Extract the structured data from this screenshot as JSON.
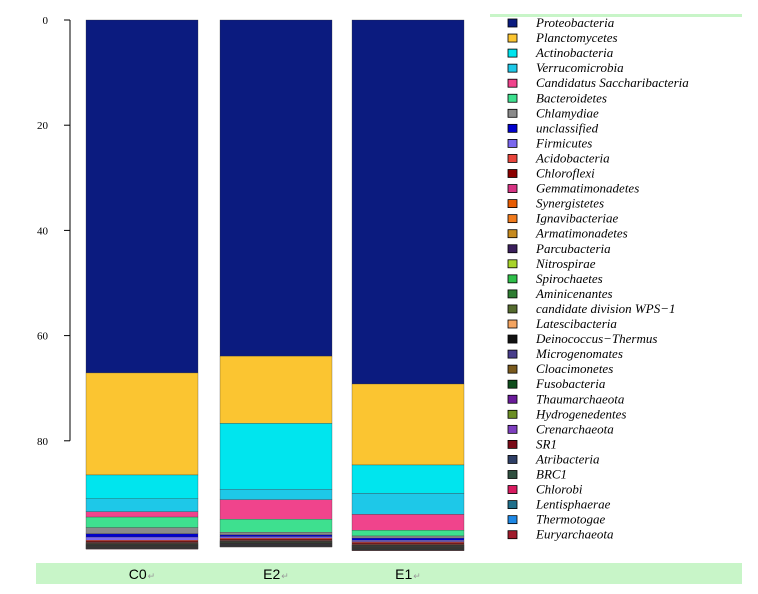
{
  "chart_data": {
    "type": "bar",
    "stacked": true,
    "categories": [
      "C0",
      "E2",
      "E1"
    ],
    "ylim": [
      0,
      100
    ],
    "yticks": [
      0,
      20,
      40,
      60,
      80
    ],
    "y_inverted": true,
    "legend_position": "right",
    "series": [
      {
        "name": "Proteobacteria",
        "color": "#0b1b7f",
        "values": [
          67.1,
          63.9,
          69.2
        ]
      },
      {
        "name": "Planctomycetes",
        "color": "#fbc531",
        "values": [
          19.4,
          12.8,
          15.4
        ]
      },
      {
        "name": "Actinobacteria",
        "color": "#00e5ee",
        "values": [
          4.5,
          12.5,
          5.4
        ]
      },
      {
        "name": "Verrucomicrobia",
        "color": "#1ec8e8",
        "values": [
          2.5,
          2.0,
          4.0
        ]
      },
      {
        "name": "Candidatus Saccharibacteria",
        "color": "#f0448c",
        "values": [
          1.0,
          3.7,
          3.0
        ]
      },
      {
        "name": "Bacteroidetes",
        "color": "#3ee08f",
        "values": [
          2.0,
          2.5,
          1.1
        ]
      },
      {
        "name": "Chlamydiae",
        "color": "#8a8a8a",
        "values": [
          1.2,
          0.5,
          0.4
        ]
      },
      {
        "name": "unclassified",
        "color": "#0000cd",
        "values": [
          0.6,
          0.3,
          0.4
        ]
      },
      {
        "name": "Firmicutes",
        "color": "#7b68ee",
        "values": [
          0.6,
          0.3,
          0.3
        ]
      },
      {
        "name": "Acidobacteria",
        "color": "#e8453c",
        "values": [
          0.2,
          0.2,
          0.2
        ]
      },
      {
        "name": "Chloroflexi",
        "color": "#8b0000",
        "values": [
          0.2,
          0.2,
          0.2
        ]
      },
      {
        "name": "Gemmatimonadetes",
        "color": "#d63384",
        "values": [
          0.1,
          0.1,
          0.1
        ]
      },
      {
        "name": "Synergistetes",
        "color": "#e85d04",
        "values": [
          0.1,
          0.1,
          0.1
        ]
      },
      {
        "name": "Ignavibacteriae",
        "color": "#f07b1d",
        "values": [
          0.05,
          0.05,
          0.05
        ]
      },
      {
        "name": "Armatimonadetes",
        "color": "#c68a1e",
        "values": [
          0.05,
          0.05,
          0.05
        ]
      },
      {
        "name": "Parcubacteria",
        "color": "#3b1f5c",
        "values": [
          0.05,
          0.05,
          0.05
        ]
      },
      {
        "name": "Nitrospirae",
        "color": "#a8d42a",
        "values": [
          0.05,
          0.05,
          0.05
        ]
      },
      {
        "name": "Spirochaetes",
        "color": "#2fbf4a",
        "values": [
          0.05,
          0.05,
          0.05
        ]
      },
      {
        "name": "Aminicenantes",
        "color": "#2e7d32",
        "values": [
          0.05,
          0.05,
          0.05
        ]
      },
      {
        "name": "candidate division WPS-1",
        "color": "#556b2f",
        "values": [
          0.05,
          0.05,
          0.05
        ]
      },
      {
        "name": "Latescibacteria",
        "color": "#f4a460",
        "values": [
          0.05,
          0.05,
          0.05
        ]
      },
      {
        "name": "Deinococcus-Thermus",
        "color": "#111111",
        "values": [
          0.05,
          0.05,
          0.05
        ]
      },
      {
        "name": "Microgenomates",
        "color": "#483d8b",
        "values": [
          0.05,
          0.05,
          0.05
        ]
      },
      {
        "name": "Cloacimonetes",
        "color": "#7a5a1e",
        "values": [
          0.05,
          0.05,
          0.05
        ]
      },
      {
        "name": "Fusobacteria",
        "color": "#0f4d1c",
        "values": [
          0.05,
          0.05,
          0.05
        ]
      },
      {
        "name": "Thaumarchaeota",
        "color": "#6a1b9a",
        "values": [
          0.05,
          0.05,
          0.05
        ]
      },
      {
        "name": "Hydrogenedentes",
        "color": "#6b8e23",
        "values": [
          0.05,
          0.05,
          0.05
        ]
      },
      {
        "name": "Crenarchaeota",
        "color": "#7e3fbf",
        "values": [
          0.05,
          0.05,
          0.05
        ]
      },
      {
        "name": "SR1",
        "color": "#7a0a16",
        "values": [
          0.05,
          0.05,
          0.05
        ]
      },
      {
        "name": "Atribacteria",
        "color": "#2f3f66",
        "values": [
          0.05,
          0.05,
          0.05
        ]
      },
      {
        "name": "BRC1",
        "color": "#2f4f3f",
        "values": [
          0.05,
          0.05,
          0.05
        ]
      },
      {
        "name": "Chlorobi",
        "color": "#d81b60",
        "values": [
          0.05,
          0.05,
          0.05
        ]
      },
      {
        "name": "Lentisphaerae",
        "color": "#1f6f8b",
        "values": [
          0.05,
          0.05,
          0.05
        ]
      },
      {
        "name": "Thermotogae",
        "color": "#1e88e5",
        "values": [
          0.05,
          0.05,
          0.05
        ]
      },
      {
        "name": "Euryarchaeota",
        "color": "#a01c2c",
        "values": [
          0.05,
          0.05,
          0.05
        ]
      }
    ]
  },
  "labels": {
    "c0": "C0",
    "e2": "E2",
    "e1": "E1",
    "return_mark": "↵"
  }
}
